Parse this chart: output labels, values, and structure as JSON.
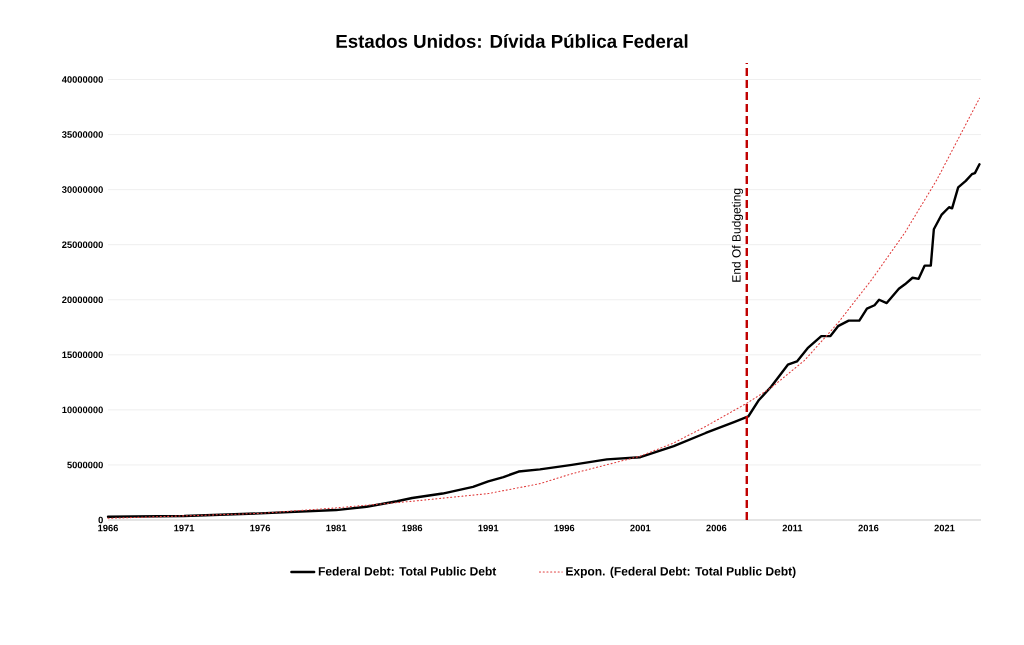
{
  "chart_data": {
    "type": "line",
    "title": "Estados Unidos: Dívida Pública Federal",
    "xlim": [
      1966,
      2023.4
    ],
    "xticks": [
      1966,
      1971,
      1976,
      1981,
      1986,
      1991,
      1996,
      2001,
      2006,
      2011,
      2016,
      2021
    ],
    "ylim": [
      0,
      41500000
    ],
    "yticks": [
      0,
      5000000,
      10000000,
      15000000,
      20000000,
      25000000,
      30000000,
      35000000,
      40000000
    ],
    "grid": "y",
    "legend": "bottom",
    "marker": "none",
    "series": [
      {
        "name": "Federal Debt: Total Public Debt",
        "color": "#000000",
        "line_style": "solid",
        "x": [
          1966,
          1971,
          1976,
          1981,
          1983,
          1985,
          1986,
          1988,
          1990,
          1991,
          1992,
          1993,
          1994.4,
          1996.5,
          1998.8,
          2001,
          2003.2,
          2005.3,
          2007.2,
          2008.1,
          2008.8,
          2009.6,
          2010.7,
          2011.3,
          2012,
          2012.9,
          2013.5,
          2014,
          2014.7,
          2015.4,
          2015.9,
          2016.4,
          2016.7,
          2017.2,
          2018,
          2018.4,
          2018.9,
          2019.3,
          2019.7,
          2020.1,
          2020.3,
          2020.8,
          2021.3,
          2021.5,
          2021.9,
          2022.4,
          2022.8,
          2023,
          2023.3
        ],
        "values": [
          300000,
          360000,
          600000,
          900000,
          1200000,
          1700000,
          2000000,
          2400000,
          3000000,
          3500000,
          3900000,
          4400000,
          4600000,
          5000000,
          5500000,
          5700000,
          6700000,
          7900000,
          8900000,
          9400000,
          10900000,
          12100000,
          14100000,
          14400000,
          15600000,
          16700000,
          16700000,
          17600000,
          18100000,
          18100000,
          19200000,
          19500000,
          20000000,
          19700000,
          21000000,
          21400000,
          22000000,
          21900000,
          23100000,
          23100000,
          26400000,
          27700000,
          28400000,
          28300000,
          30200000,
          30800000,
          31400000,
          31500000,
          32300000
        ]
      },
      {
        "name": "Expon. (Federal Debt: Total Public Debt)",
        "color": "#e03c3c",
        "line_style": "dotted",
        "x": [
          1966,
          1976,
          1981,
          1986,
          1991,
          1994.4,
          1996.5,
          2001,
          2003.2,
          2005.3,
          2008,
          2009.6,
          2011.8,
          2014,
          2016.2,
          2018.4,
          2020.5,
          2023.3
        ],
        "values": [
          150000,
          600000,
          1100000,
          1700000,
          2400000,
          3300000,
          4200000,
          5800000,
          7000000,
          8500000,
          10600000,
          12000000,
          14500000,
          17900000,
          21800000,
          26100000,
          30900000,
          38300000
        ]
      }
    ],
    "ref_lines": [
      {
        "axis": "x",
        "value": 2008,
        "label": "End Of Budgeting",
        "color": "#c00000",
        "line_style": "dashed"
      }
    ]
  }
}
